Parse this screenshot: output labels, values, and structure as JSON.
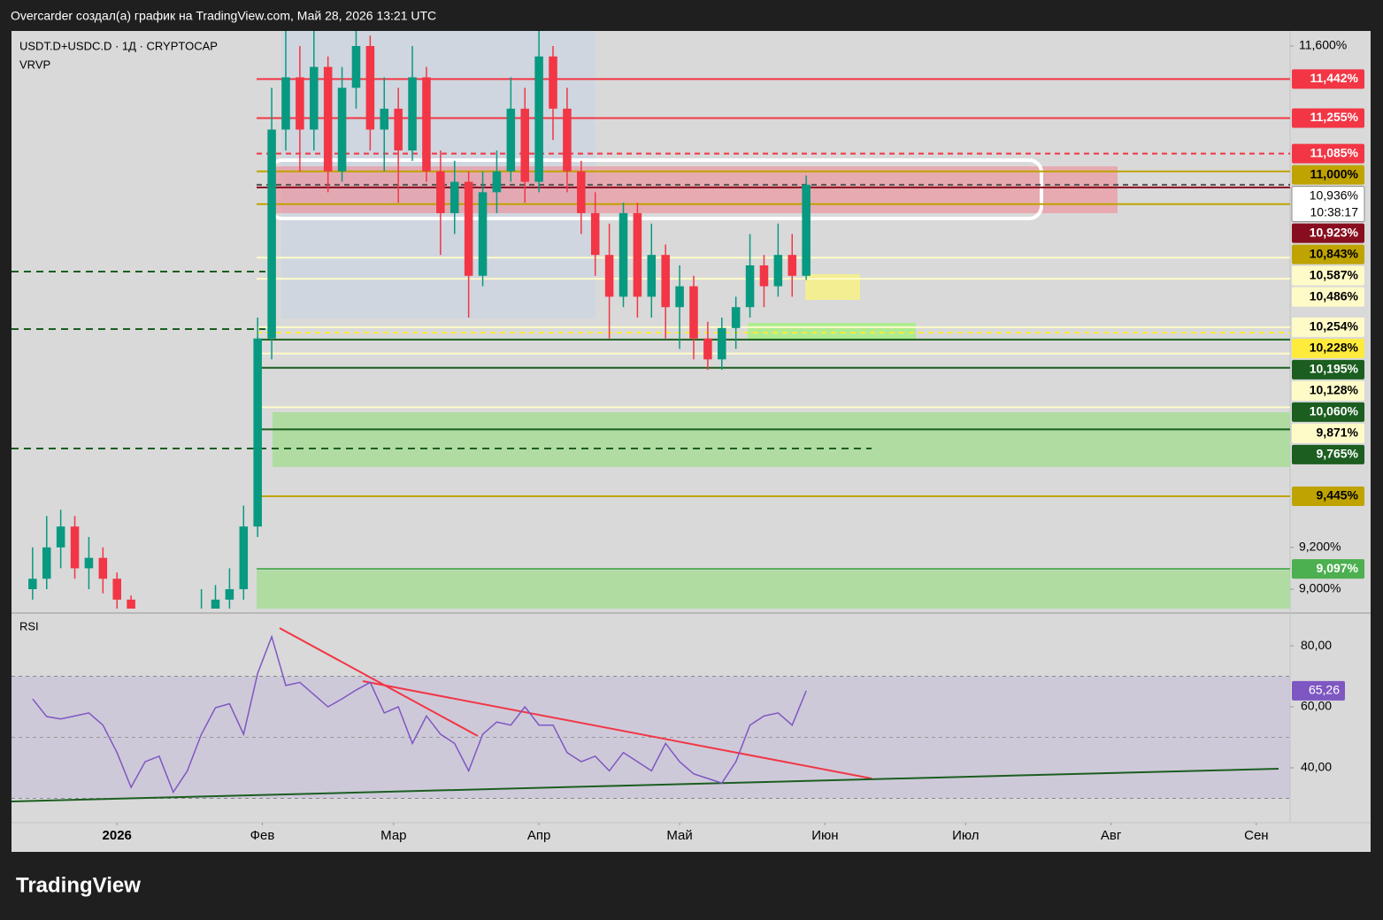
{
  "header": {
    "caption": "Overcarder создал(а) график на TradingView.com, Май 28, 2026 13:21 UTC",
    "symbol": "USDT.D+USDC.D · 1Д · CRYPTOCAP",
    "indicator": "VRVP",
    "countdown": "10:38:17",
    "brand": "TradingView"
  },
  "chart_data": [
    {
      "type": "candlestick",
      "x": [
        -18,
        -15,
        -12,
        -9,
        -6,
        -3,
        0,
        3,
        6,
        9,
        12,
        15,
        18,
        21,
        24,
        27,
        30,
        33,
        36,
        39,
        42,
        45,
        48,
        51,
        54,
        57,
        60,
        63,
        66,
        69,
        72,
        75,
        78,
        81,
        84,
        87,
        90,
        93,
        96,
        99,
        102,
        105,
        108,
        111,
        114,
        117,
        120,
        123,
        126,
        129,
        132,
        135,
        138,
        141,
        144,
        147
      ],
      "open": [
        9.0,
        9.05,
        9.2,
        9.3,
        9.1,
        9.15,
        9.05,
        8.95,
        8.85,
        8.8,
        8.75,
        8.8,
        8.85,
        8.9,
        8.95,
        9.0,
        9.3,
        10.2,
        11.2,
        11.45,
        11.2,
        11.5,
        11.0,
        11.4,
        11.6,
        11.2,
        11.3,
        11.1,
        11.45,
        11.0,
        10.8,
        10.95,
        10.5,
        10.9,
        11.0,
        11.3,
        10.95,
        11.55,
        11.3,
        11.0,
        10.8,
        10.6,
        10.4,
        10.8,
        10.4,
        10.6,
        10.35,
        10.45,
        10.2,
        10.1,
        10.25,
        10.35,
        10.55,
        10.45,
        10.6,
        10.5
      ],
      "high": [
        9.2,
        9.35,
        9.38,
        9.35,
        9.25,
        9.2,
        9.08,
        8.97,
        8.88,
        8.85,
        8.85,
        8.9,
        9.0,
        9.02,
        9.1,
        9.4,
        10.3,
        11.4,
        11.7,
        11.6,
        11.7,
        11.55,
        11.5,
        11.7,
        11.65,
        11.45,
        11.4,
        11.6,
        11.5,
        11.1,
        11.05,
        11.0,
        11.0,
        11.1,
        11.45,
        11.4,
        11.68,
        11.6,
        11.4,
        11.05,
        10.9,
        10.75,
        10.85,
        10.85,
        10.75,
        10.65,
        10.55,
        10.5,
        10.28,
        10.3,
        10.4,
        10.7,
        10.6,
        10.75,
        10.7,
        10.98
      ],
      "low": [
        8.95,
        9.0,
        9.1,
        9.05,
        9.0,
        8.98,
        8.9,
        8.8,
        8.75,
        8.7,
        8.7,
        8.75,
        8.8,
        8.85,
        8.9,
        8.95,
        9.25,
        10.1,
        11.1,
        11.0,
        11.1,
        10.9,
        10.95,
        11.3,
        11.1,
        11.0,
        10.85,
        11.05,
        10.95,
        10.6,
        10.7,
        10.3,
        10.45,
        10.8,
        10.95,
        10.85,
        10.9,
        11.15,
        10.9,
        10.7,
        10.5,
        10.2,
        10.35,
        10.3,
        10.3,
        10.2,
        10.15,
        10.1,
        10.05,
        10.05,
        10.15,
        10.3,
        10.35,
        10.4,
        10.4,
        10.48
      ],
      "close": [
        9.05,
        9.2,
        9.3,
        9.1,
        9.15,
        9.05,
        8.95,
        8.85,
        8.8,
        8.75,
        8.8,
        8.85,
        8.9,
        8.95,
        9.0,
        9.3,
        10.2,
        11.2,
        11.45,
        11.2,
        11.5,
        11.0,
        11.4,
        11.6,
        11.2,
        11.3,
        11.1,
        11.45,
        11.0,
        10.8,
        10.95,
        10.5,
        10.9,
        11.0,
        11.3,
        10.95,
        11.55,
        11.3,
        11.0,
        10.8,
        10.6,
        10.4,
        10.8,
        10.4,
        10.6,
        10.35,
        10.45,
        10.2,
        10.1,
        10.25,
        10.35,
        10.55,
        10.45,
        10.6,
        10.5,
        10.936
      ],
      "up_color": "#089981",
      "down_color": "#f23645",
      "xlim": [
        -22.5,
        250.2
      ],
      "xticks": [
        {
          "value": 0,
          "label": "2026"
        },
        {
          "value": 31,
          "label": "Фев"
        },
        {
          "value": 59,
          "label": "Мар"
        },
        {
          "value": 90,
          "label": "Апр"
        },
        {
          "value": 120,
          "label": "Май"
        },
        {
          "value": 151,
          "label": "Июн"
        },
        {
          "value": 181,
          "label": "Июл"
        },
        {
          "value": 212,
          "label": "Авг"
        },
        {
          "value": 243,
          "label": "Сен"
        }
      ],
      "ylim": [
        8.907,
        11.672
      ],
      "yticks": [
        {
          "value": 9.0,
          "label": "9,000%"
        },
        {
          "value": 9.2,
          "label": "9,200%"
        },
        {
          "value": 11.6,
          "label": "11,600%"
        }
      ],
      "levels": [
        {
          "value": 11.442,
          "label": "11,442%",
          "color": "#f23645",
          "text_color": "#ffffff",
          "dashed": false
        },
        {
          "value": 11.255,
          "label": "11,255%",
          "color": "#f23645",
          "text_color": "#ffffff",
          "dashed": false
        },
        {
          "value": 11.085,
          "label": "11,085%",
          "color": "#f23645",
          "text_color": "#ffffff",
          "dashed": true
        },
        {
          "value": 11.0,
          "label": "11,000%",
          "color": "#bfa300",
          "text_color": "#000000",
          "dashed": false
        },
        {
          "value": 10.936,
          "label": "10,936%",
          "color": "#ffffff",
          "text_color": "#000000",
          "dashed": true
        },
        {
          "value": 10.923,
          "label": "10,923%",
          "color": "#880e1f",
          "text_color": "#ffffff",
          "dashed": false
        },
        {
          "value": 10.843,
          "label": "10,843%",
          "color": "#bfa300",
          "text_color": "#000000",
          "dashed": false
        },
        {
          "value": 10.587,
          "label": "10,587%",
          "color": "#fffbc8",
          "text_color": "#000000",
          "dashed": false
        },
        {
          "value": 10.486,
          "label": "10,486%",
          "color": "#fffbc8",
          "text_color": "#000000",
          "dashed": false
        },
        {
          "value": 10.254,
          "label": "10,254%",
          "color": "#fffbc8",
          "text_color": "#000000",
          "dashed": false
        },
        {
          "value": 10.228,
          "label": "10,228%",
          "color": "#ffeb3b",
          "text_color": "#000000",
          "dashed": true
        },
        {
          "value": 10.195,
          "label": "10,195%",
          "color": "#1b5e20",
          "text_color": "#ffffff",
          "dashed": false
        },
        {
          "value": 10.128,
          "label": "10,128%",
          "color": "#fffbc8",
          "text_color": "#000000",
          "dashed": false
        },
        {
          "value": 10.06,
          "label": "10,060%",
          "color": "#1b5e20",
          "text_color": "#ffffff",
          "dashed": false
        },
        {
          "value": 9.871,
          "label": "9,871%",
          "color": "#fffbc8",
          "text_color": "#000000",
          "dashed": false
        },
        {
          "value": 9.765,
          "label": "9,765%",
          "color": "#1b5e20",
          "text_color": "#ffffff",
          "dashed": false
        },
        {
          "value": 9.445,
          "label": "9,445%",
          "color": "#bfa300",
          "text_color": "#000000",
          "dashed": false
        },
        {
          "value": 9.097,
          "label": "9,097%",
          "color": "#4caf50",
          "text_color": "#ffffff",
          "dashed": false
        }
      ]
    },
    {
      "type": "line",
      "title": "RSI",
      "color": "#7e57c2",
      "x": [
        -18,
        -15,
        -12,
        -9,
        -6,
        -3,
        0,
        3,
        6,
        9,
        12,
        15,
        18,
        21,
        24,
        27,
        30,
        33,
        36,
        39,
        42,
        45,
        48,
        51,
        54,
        57,
        60,
        63,
        66,
        69,
        72,
        75,
        78,
        81,
        84,
        87,
        90,
        93,
        96,
        99,
        102,
        105,
        108,
        111,
        114,
        117,
        120,
        123,
        126,
        129,
        132,
        135,
        138,
        141,
        144,
        147
      ],
      "values": [
        62.6,
        56.8,
        56,
        57,
        58,
        54,
        45,
        33.6,
        42,
        43.8,
        32,
        39,
        51,
        59.7,
        61,
        51,
        71,
        83,
        67,
        68,
        64,
        60,
        62.6,
        65.5,
        68,
        58,
        60,
        48,
        57,
        51,
        48,
        39,
        51,
        55,
        54,
        60,
        54,
        54,
        45,
        42,
        43.8,
        39,
        45,
        42,
        39,
        48,
        42,
        38,
        36.5,
        35,
        42,
        54,
        57,
        58,
        54,
        65.26
      ],
      "current": {
        "value": 65.26,
        "label": "65,26"
      },
      "ylim": [
        22.0,
        89.3
      ],
      "yticks": [
        {
          "value": 40,
          "label": "40,00"
        },
        {
          "value": 60,
          "label": "60,00"
        },
        {
          "value": 80,
          "label": "80,00"
        }
      ]
    }
  ]
}
